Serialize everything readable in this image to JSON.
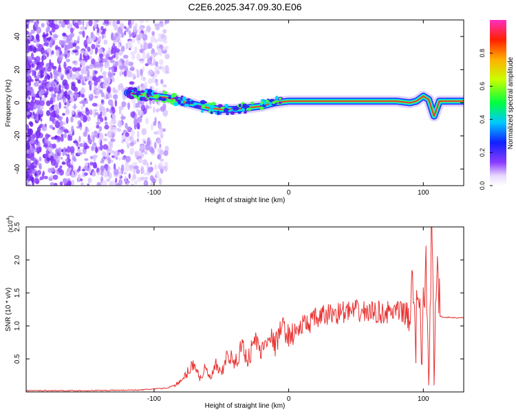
{
  "title": "C2E6.2025.347.09.30.E06",
  "colors": {
    "snr_line": "#e83030",
    "carrier": "#e8373a",
    "noise_purple": "#6a1fe8"
  },
  "chart_data": [
    {
      "type": "heatmap",
      "name": "spectrogram",
      "xlabel": "Height of straight line (km)",
      "ylabel": "Frequency (Hz)",
      "xlim": [
        -195,
        130
      ],
      "ylim": [
        -50,
        50
      ],
      "x_ticks": [
        -100,
        0,
        100
      ],
      "x_tick_labels": [
        "-100",
        "0",
        "100"
      ],
      "y_ticks": [
        -40,
        -20,
        0,
        20,
        40
      ],
      "y_tick_labels": [
        "-40",
        "-20",
        "0",
        "20",
        "40"
      ],
      "colorbar": {
        "label": "Normalized spectral amplitude",
        "range": [
          0,
          1
        ],
        "ticks": [
          0,
          0.2,
          0.4,
          0.6,
          0.8
        ],
        "tick_labels": [
          "0.0",
          "0.2",
          "0.4",
          "0.6",
          "0.8"
        ]
      },
      "carrier_track": {
        "x": [
          -120,
          -110,
          -100,
          -90,
          -80,
          -70,
          -60,
          -50,
          -40,
          -30,
          -20,
          -10,
          0,
          20,
          40,
          60,
          80,
          90,
          95,
          100,
          104,
          108,
          112,
          130
        ],
        "y": [
          6,
          5,
          4,
          3,
          1,
          -1,
          -3,
          -4,
          -4,
          -3,
          -2,
          0,
          1,
          1,
          1,
          1,
          1,
          0,
          1,
          4,
          2,
          -8,
          1,
          1
        ]
      }
    },
    {
      "type": "line",
      "name": "snr",
      "xlabel": "Height of straight line (km)",
      "ylabel": "SNR (10 * v/v)",
      "y_multiplier_label": "(x10",
      "y_multiplier_exp": "4",
      "xlim": [
        -195,
        130
      ],
      "ylim": [
        0,
        2.5
      ],
      "x_ticks": [
        -100,
        0,
        100
      ],
      "x_tick_labels": [
        "-100",
        "0",
        "100"
      ],
      "y_ticks": [
        0.5,
        1.0,
        1.5,
        2.0,
        2.5
      ],
      "y_tick_labels": [
        "0.5",
        "1.0",
        "1.5",
        "2.0",
        "2.5"
      ],
      "series": [
        {
          "name": "SNR",
          "x": [
            -195,
            -150,
            -110,
            -90,
            -80,
            -75,
            -70,
            -66,
            -62,
            -58,
            -54,
            -50,
            -45,
            -40,
            -35,
            -30,
            -25,
            -20,
            -15,
            -10,
            -5,
            0,
            5,
            10,
            15,
            20,
            30,
            40,
            50,
            60,
            70,
            80,
            85,
            88,
            92,
            94,
            96,
            98,
            100,
            102,
            104,
            106,
            108,
            110,
            112,
            115,
            120,
            125,
            130
          ],
          "y": [
            0.02,
            0.02,
            0.03,
            0.06,
            0.15,
            0.3,
            0.45,
            0.2,
            0.35,
            0.2,
            0.4,
            0.25,
            0.6,
            0.4,
            0.7,
            0.5,
            0.8,
            0.6,
            0.9,
            0.7,
            1.0,
            0.85,
            0.9,
            1.0,
            1.05,
            1.1,
            1.18,
            1.21,
            1.22,
            1.21,
            1.2,
            1.21,
            1.2,
            1.18,
            1.5,
            0.6,
            1.8,
            0.5,
            1.3,
            2.0,
            0.3,
            2.5,
            0.3,
            1.6,
            1.15,
            1.13,
            1.13,
            1.12,
            1.13
          ]
        }
      ]
    }
  ]
}
